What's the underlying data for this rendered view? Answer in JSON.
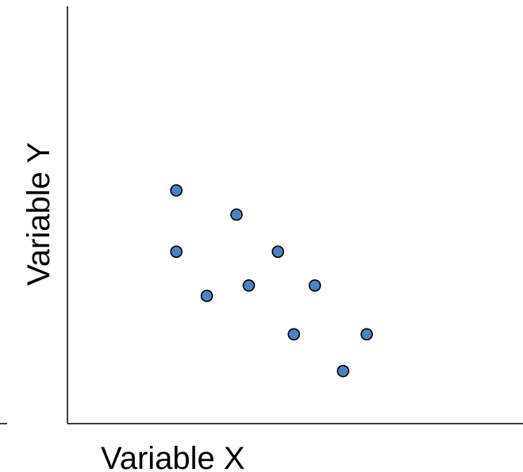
{
  "chart_data": {
    "type": "scatter",
    "title": "",
    "xlabel": "Variable X",
    "ylabel": "Variable Y",
    "xlim": [
      0,
      100
    ],
    "ylim": [
      0,
      100
    ],
    "grid": false,
    "ticks": false,
    "legend": "none",
    "series": [
      {
        "color": "#4F81BD",
        "points": [
          {
            "x": 23.9,
            "y": 55.9
          },
          {
            "x": 37.1,
            "y": 50.1
          },
          {
            "x": 23.9,
            "y": 41.2
          },
          {
            "x": 46.2,
            "y": 41.2
          },
          {
            "x": 30.6,
            "y": 30.6
          },
          {
            "x": 39.8,
            "y": 33.1
          },
          {
            "x": 54.3,
            "y": 33.1
          },
          {
            "x": 49.7,
            "y": 21.4
          },
          {
            "x": 65.7,
            "y": 21.4
          },
          {
            "x": 60.5,
            "y": 12.6
          }
        ]
      }
    ]
  }
}
